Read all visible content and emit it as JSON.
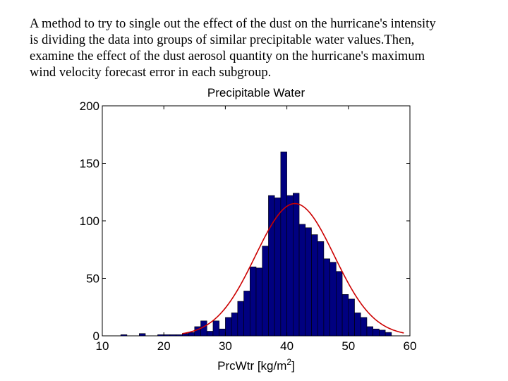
{
  "intro_text": {
    "lines": [
      "A method to try to single out the effect of the dust on the hurricane's intensity",
      "is dividing the data into groups of similar precipitable water values.Then,",
      "examine the effect of the dust aerosol quantity on the hurricane's maximum",
      "wind velocity forecast error in each subgroup."
    ]
  },
  "chart_data": {
    "type": "bar",
    "title": "Precipitable Water",
    "xlabel_main": "PrcWtr [kg/m",
    "xlabel_sup": "2",
    "xlabel_end": "]",
    "ylabel": "",
    "xlim": [
      10,
      60
    ],
    "ylim": [
      0,
      200
    ],
    "x_ticks": [
      10,
      20,
      30,
      40,
      50,
      60
    ],
    "y_ticks": [
      0,
      50,
      100,
      150,
      200
    ],
    "bin_width": 1,
    "bins": [
      {
        "x": 13.5,
        "value": 1
      },
      {
        "x": 16.5,
        "value": 2
      },
      {
        "x": 19.5,
        "value": 1
      },
      {
        "x": 20.5,
        "value": 1
      },
      {
        "x": 21.5,
        "value": 1
      },
      {
        "x": 22.5,
        "value": 1
      },
      {
        "x": 23.5,
        "value": 2
      },
      {
        "x": 24.5,
        "value": 3
      },
      {
        "x": 25.5,
        "value": 8
      },
      {
        "x": 26.5,
        "value": 13
      },
      {
        "x": 27.5,
        "value": 4
      },
      {
        "x": 28.5,
        "value": 13
      },
      {
        "x": 29.5,
        "value": 6
      },
      {
        "x": 30.5,
        "value": 16
      },
      {
        "x": 31.5,
        "value": 20
      },
      {
        "x": 32.5,
        "value": 30
      },
      {
        "x": 33.5,
        "value": 39
      },
      {
        "x": 34.5,
        "value": 60
      },
      {
        "x": 35.5,
        "value": 59
      },
      {
        "x": 36.5,
        "value": 78
      },
      {
        "x": 37.5,
        "value": 122
      },
      {
        "x": 38.5,
        "value": 120
      },
      {
        "x": 39.5,
        "value": 160
      },
      {
        "x": 40.5,
        "value": 122
      },
      {
        "x": 41.5,
        "value": 124
      },
      {
        "x": 42.5,
        "value": 97
      },
      {
        "x": 43.5,
        "value": 94
      },
      {
        "x": 44.5,
        "value": 88
      },
      {
        "x": 45.5,
        "value": 82
      },
      {
        "x": 46.5,
        "value": 67
      },
      {
        "x": 47.5,
        "value": 64
      },
      {
        "x": 48.5,
        "value": 56
      },
      {
        "x": 49.5,
        "value": 36
      },
      {
        "x": 50.5,
        "value": 32
      },
      {
        "x": 51.5,
        "value": 20
      },
      {
        "x": 52.5,
        "value": 16
      },
      {
        "x": 53.5,
        "value": 8
      },
      {
        "x": 54.5,
        "value": 6
      },
      {
        "x": 55.5,
        "value": 5
      },
      {
        "x": 56.5,
        "value": 3
      }
    ],
    "fit_curve": {
      "type": "normal",
      "mean": 41.3,
      "std": 6.4,
      "peak": 115,
      "x_range": [
        23,
        59
      ]
    },
    "colors": {
      "bar_fill": "#000080",
      "bar_stroke": "#000000",
      "curve": "#cc0000"
    },
    "grid": false,
    "legend": "none"
  }
}
